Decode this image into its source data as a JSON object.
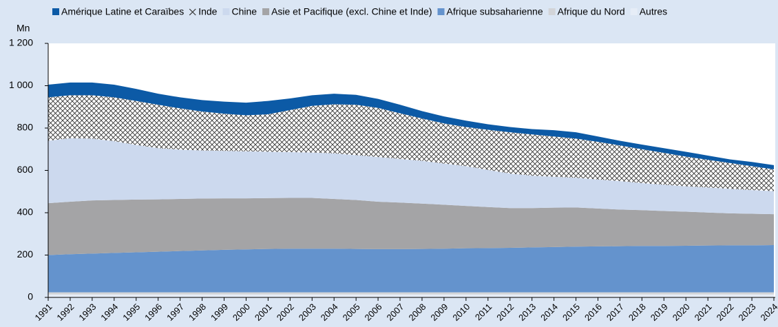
{
  "chart_data": {
    "type": "stacked-area",
    "y_label": "Mn",
    "categories": [
      "1991",
      "1992",
      "1993",
      "1994",
      "1995",
      "1996",
      "1997",
      "1998",
      "1999",
      "2000",
      "2001",
      "2002",
      "2003",
      "2004",
      "2005",
      "2006",
      "2007",
      "2008",
      "2009",
      "2010",
      "2011",
      "2012",
      "2013",
      "2014",
      "2015",
      "2016",
      "2017",
      "2018",
      "2019",
      "2020",
      "2021",
      "2022",
      "2023",
      "2024"
    ],
    "series": [
      {
        "name": "Amérique Latine et Caraïbes",
        "color": "#0c5aa6",
        "values": [
          60,
          60,
          60,
          60,
          57,
          52,
          52,
          54,
          57,
          60,
          63,
          55,
          50,
          50,
          47,
          43,
          40,
          35,
          33,
          30,
          26,
          25,
          25,
          30,
          30,
          25,
          22,
          22,
          22,
          23,
          20,
          17,
          20,
          20
        ]
      },
      {
        "name": "Inde",
        "color": "crosshatch",
        "values": [
          205,
          203,
          205,
          207,
          208,
          205,
          195,
          184,
          176,
          170,
          177,
          199,
          221,
          232,
          238,
          232,
          216,
          200,
          190,
          185,
          190,
          195,
          195,
          190,
          185,
          178,
          169,
          160,
          151,
          140,
          131,
          122,
          113,
          103
        ]
      },
      {
        "name": "Chine",
        "color": "#ccd9ee",
        "values": [
          295,
          300,
          292,
          278,
          258,
          242,
          233,
          227,
          224,
          222,
          219,
          216,
          214,
          215,
          212,
          211,
          206,
          202,
          194,
          188,
          175,
          163,
          153,
          146,
          140,
          137,
          134,
          128,
          124,
          120,
          118,
          116,
          112,
          109
        ]
      },
      {
        "name": "Asie et Pacifique (excl. Chine et Inde)",
        "color": "#a4a4a6",
        "values": [
          245,
          248,
          251,
          250,
          249,
          247,
          246,
          245,
          243,
          241,
          240,
          240,
          240,
          235,
          231,
          224,
          220,
          214,
          208,
          200,
          194,
          188,
          186,
          186,
          185,
          179,
          173,
          169,
          165,
          161,
          156,
          151,
          149,
          146
        ]
      },
      {
        "name": "Afrique subsaharienne",
        "color": "#6493cd",
        "values": [
          176,
          180,
          183,
          186,
          189,
          192,
          195,
          198,
          201,
          203,
          205,
          206,
          206,
          206,
          205,
          204,
          204,
          205,
          206,
          208,
          209,
          210,
          212,
          214,
          216,
          217,
          218,
          219,
          219,
          220,
          221,
          222,
          222,
          223
        ]
      },
      {
        "name": "Afrique du Nord",
        "color": "#d2d4d8",
        "values": [
          10,
          10,
          10,
          10,
          10,
          10,
          10,
          10,
          10,
          10,
          10,
          10,
          10,
          10,
          10,
          10,
          10,
          10,
          10,
          10,
          10,
          10,
          10,
          10,
          10,
          10,
          10,
          10,
          10,
          10,
          10,
          10,
          10,
          10
        ]
      },
      {
        "name": "Autres",
        "color": "#e6edf7",
        "values": [
          14,
          14,
          14,
          14,
          14,
          14,
          14,
          14,
          14,
          14,
          14,
          14,
          14,
          14,
          14,
          14,
          14,
          14,
          14,
          14,
          14,
          14,
          14,
          14,
          14,
          14,
          14,
          14,
          14,
          14,
          14,
          14,
          14,
          14
        ]
      }
    ],
    "ylim": [
      0,
      1200
    ],
    "yticks": [
      0,
      200,
      400,
      600,
      800,
      {
        "value": 1000,
        "label": "1 000"
      },
      {
        "value": 1200,
        "label": "1 200"
      }
    ],
    "grid": false
  }
}
